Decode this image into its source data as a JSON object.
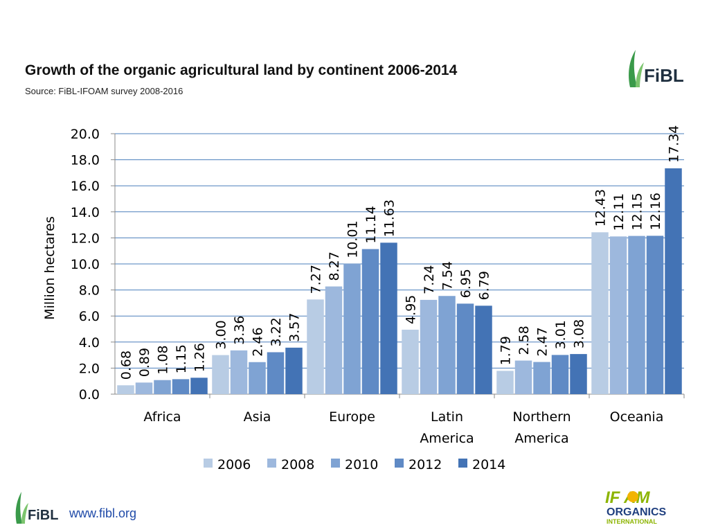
{
  "header": {
    "title": "Growth of the organic agricultural land by continent 2006-2014",
    "source": "Source: FiBL-IFOAM survey 2008-2016"
  },
  "logos": {
    "fibl_text": "FiBL",
    "ifoam_line1": "IF  AM",
    "ifoam_line2": "ORGANICS",
    "ifoam_line3": "INTERNATIONAL"
  },
  "footer": {
    "website": "www.fibl.org"
  },
  "chart_data": {
    "type": "bar",
    "title": "Growth of the organic agricultural land by continent 2006-2014",
    "ylabel": "Million hectares",
    "xlabel": "",
    "ylim": [
      0,
      20
    ],
    "yticks": [
      "0.0",
      "2.0",
      "4.0",
      "6.0",
      "8.0",
      "10.0",
      "12.0",
      "14.0",
      "16.0",
      "18.0",
      "20.0"
    ],
    "grid": true,
    "legend_position": "bottom",
    "categories": [
      [
        "Africa"
      ],
      [
        "Asia"
      ],
      [
        "Europe"
      ],
      [
        "Latin",
        "America"
      ],
      [
        "Northern",
        "America"
      ],
      [
        "Oceania"
      ]
    ],
    "series": [
      {
        "name": "2006",
        "color": "#b8cce4",
        "values": [
          0.68,
          3.0,
          7.27,
          4.95,
          1.79,
          12.43
        ],
        "labels": [
          "0.68",
          "3.00",
          "7.27",
          "4.95",
          "1.79",
          "12.43"
        ]
      },
      {
        "name": "2008",
        "color": "#9db8dd",
        "values": [
          0.89,
          3.36,
          8.27,
          7.24,
          2.58,
          12.11
        ],
        "labels": [
          "0.89",
          "3.36",
          "8.27",
          "7.24",
          "2.58",
          "12.11"
        ]
      },
      {
        "name": "2010",
        "color": "#7fa3d3",
        "values": [
          1.08,
          2.46,
          10.01,
          7.54,
          2.47,
          12.15
        ],
        "labels": [
          "1.08",
          "2.46",
          "10.01",
          "7.54",
          "2.47",
          "12.15"
        ]
      },
      {
        "name": "2012",
        "color": "#5f8ac5",
        "values": [
          1.15,
          3.22,
          11.14,
          6.95,
          3.01,
          12.16
        ],
        "labels": [
          "1.15",
          "3.22",
          "11.14",
          "6.95",
          "3.01",
          "12.16"
        ]
      },
      {
        "name": "2014",
        "color": "#4373b5",
        "values": [
          1.26,
          3.57,
          11.63,
          6.79,
          3.08,
          17.34
        ],
        "labels": [
          "1.26",
          "3.57",
          "11.63",
          "6.79",
          "3.08",
          "17.34"
        ]
      }
    ]
  }
}
